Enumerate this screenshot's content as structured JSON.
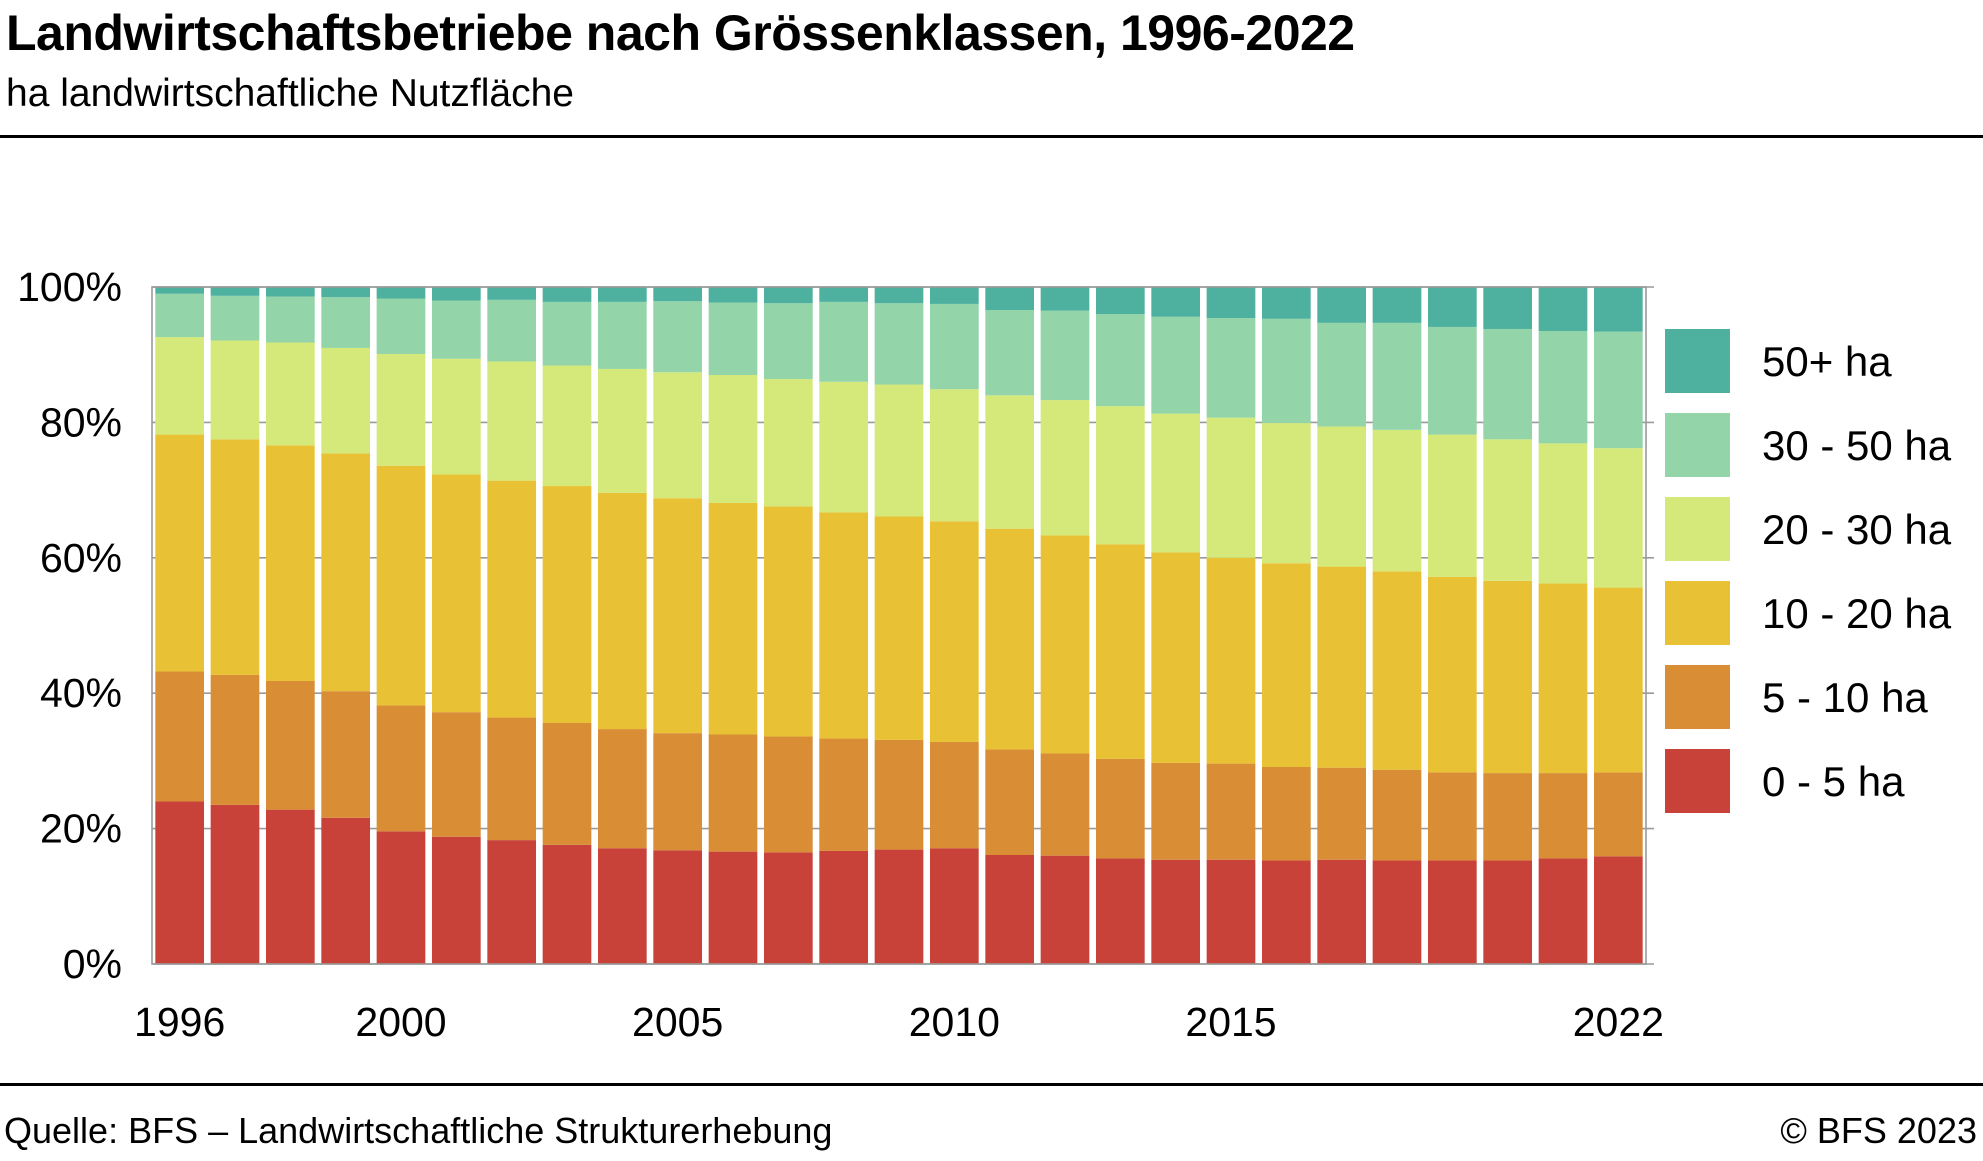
{
  "header": {
    "title": "Landwirtschaftsbetriebe nach Grössenklassen, 1996-2022",
    "subtitle": "ha landwirtschaftliche Nutzfläche"
  },
  "footer": {
    "source": "Quelle: BFS – Landwirtschaftliche Strukturerhebung",
    "copyright": "© BFS 2023"
  },
  "chart_data": {
    "type": "bar",
    "stacked": true,
    "title": "Landwirtschaftsbetriebe nach Grössenklassen, 1996-2022",
    "subtitle": "ha landwirtschaftliche Nutzfläche",
    "xlabel": "",
    "ylabel": "",
    "ylim": [
      0,
      100
    ],
    "grid": true,
    "legend_position": "right",
    "x": [
      1996,
      1997,
      1998,
      1999,
      2000,
      2001,
      2002,
      2003,
      2004,
      2005,
      2006,
      2007,
      2008,
      2009,
      2010,
      2011,
      2012,
      2013,
      2014,
      2015,
      2016,
      2017,
      2018,
      2019,
      2020,
      2021,
      2022
    ],
    "x_tick_labels": [
      "1996",
      "2000",
      "2005",
      "2010",
      "2015",
      "2022"
    ],
    "x_tick_values": [
      1996,
      2000,
      2005,
      2010,
      2015,
      2022
    ],
    "y_tick_labels": [
      "0%",
      "20%",
      "40%",
      "60%",
      "80%",
      "100%"
    ],
    "y_tick_values": [
      0,
      20,
      40,
      60,
      80,
      100
    ],
    "series": [
      {
        "name": "0 - 5 ha",
        "color": "#c8423a",
        "values": [
          24.0,
          23.5,
          22.8,
          21.6,
          19.6,
          18.8,
          18.3,
          17.6,
          17.1,
          16.8,
          16.6,
          16.5,
          16.7,
          16.9,
          17.1,
          16.1,
          16.0,
          15.6,
          15.4,
          15.4,
          15.3,
          15.4,
          15.3,
          15.3,
          15.3,
          15.6,
          15.9
        ]
      },
      {
        "name": "5 - 10 ha",
        "color": "#d98d35",
        "values": [
          19.2,
          19.2,
          19.0,
          18.7,
          18.6,
          18.4,
          18.1,
          18.0,
          17.6,
          17.3,
          17.3,
          17.1,
          16.6,
          16.2,
          15.7,
          15.6,
          15.1,
          14.7,
          14.3,
          14.2,
          13.8,
          13.6,
          13.4,
          13.0,
          12.9,
          12.6,
          12.4
        ]
      },
      {
        "name": "10 - 20 ha",
        "color": "#e8c234",
        "values": [
          35.0,
          34.8,
          34.8,
          35.1,
          35.4,
          35.1,
          35.0,
          35.0,
          34.9,
          34.7,
          34.2,
          34.0,
          33.4,
          33.0,
          32.6,
          32.6,
          32.2,
          31.7,
          31.1,
          30.4,
          30.1,
          29.7,
          29.3,
          28.9,
          28.4,
          28.0,
          27.3
        ]
      },
      {
        "name": "20 - 30 ha",
        "color": "#d4e97a",
        "values": [
          14.4,
          14.6,
          15.2,
          15.6,
          16.5,
          17.1,
          17.6,
          17.8,
          18.3,
          18.6,
          18.9,
          18.8,
          19.3,
          19.5,
          19.5,
          19.7,
          20.0,
          20.4,
          20.5,
          20.7,
          20.7,
          20.7,
          20.9,
          21.0,
          20.9,
          20.7,
          20.6
        ]
      },
      {
        "name": "30 - 50 ha",
        "color": "#93d4a8",
        "values": [
          6.4,
          6.6,
          6.8,
          7.5,
          8.2,
          8.6,
          9.1,
          9.4,
          9.9,
          10.5,
          10.7,
          11.2,
          11.8,
          12.0,
          12.6,
          12.6,
          13.2,
          13.6,
          14.3,
          14.7,
          15.4,
          15.3,
          15.8,
          15.9,
          16.3,
          16.6,
          17.2
        ]
      },
      {
        "name": "50+ ha",
        "color": "#4eb09f",
        "values": [
          1.0,
          1.3,
          1.4,
          1.5,
          1.7,
          2.0,
          1.9,
          2.2,
          2.2,
          2.1,
          2.3,
          2.4,
          2.2,
          2.4,
          2.5,
          3.4,
          3.5,
          4.0,
          4.4,
          4.6,
          4.7,
          5.3,
          5.3,
          5.9,
          6.2,
          6.5,
          6.6
        ]
      }
    ]
  }
}
